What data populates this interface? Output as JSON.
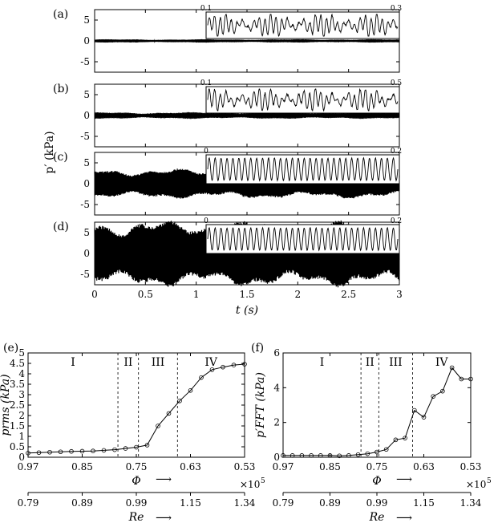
{
  "chart_data": [
    {
      "id": "a",
      "type": "line",
      "panel_label": "(a)",
      "title": "",
      "xlabel": "",
      "ylabel": "",
      "xlim": [
        0,
        3
      ],
      "ylim": [
        -7.5,
        7.5
      ],
      "yticks": [
        5,
        0,
        -5
      ],
      "signal_amplitude_kpa": 0.3,
      "inset": {
        "t_start": 0.1,
        "t_end": 0.3,
        "labels": [
          "0.1",
          "0.3"
        ]
      }
    },
    {
      "id": "b",
      "type": "line",
      "panel_label": "(b)",
      "title": "",
      "xlabel": "",
      "ylabel": "",
      "xlim": [
        0,
        3
      ],
      "ylim": [
        -7.5,
        7.5
      ],
      "yticks": [
        5,
        0,
        -5
      ],
      "signal_amplitude_kpa": 0.6,
      "inset": {
        "t_start": 0.1,
        "t_end": 0.5,
        "labels": [
          "0.1",
          "0.5"
        ]
      }
    },
    {
      "id": "c",
      "type": "line",
      "panel_label": "(c)",
      "title": "",
      "xlabel": "",
      "ylabel": "",
      "xlim": [
        0,
        3
      ],
      "ylim": [
        -7.5,
        7.5
      ],
      "yticks": [
        5,
        0,
        -5
      ],
      "signal_amplitude_kpa": 2.7,
      "inset": {
        "t_start": 0,
        "t_end": 0.2,
        "labels": [
          "0",
          "0.2"
        ]
      }
    },
    {
      "id": "d",
      "type": "line",
      "panel_label": "(d)",
      "title": "",
      "xlabel": "t (s)",
      "ylabel": "",
      "xlim": [
        0,
        3
      ],
      "ylim": [
        -7.5,
        7.5
      ],
      "xticks": [
        0,
        0.5,
        1,
        1.5,
        2,
        2.5,
        3
      ],
      "xtick_labels": [
        "0",
        "0.5",
        "1",
        "1.5",
        "2",
        "2.5",
        "3"
      ],
      "yticks": [
        5,
        0,
        -5
      ],
      "signal_amplitude_kpa": 6.0,
      "inset": {
        "t_start": 0,
        "t_end": 0.2,
        "labels": [
          "0",
          "0.2"
        ]
      }
    },
    {
      "id": "e",
      "type": "line",
      "panel_label": "(e)",
      "title": "",
      "xlabel": "Φ",
      "ylabel": "prms (kPa)",
      "ylim": [
        0,
        5
      ],
      "yticks": [
        0,
        0.5,
        1,
        1.5,
        2,
        2.5,
        3,
        3.5,
        4,
        4.5,
        5
      ],
      "xtick_labels": [
        "0.97",
        "0.85",
        "0.75",
        "0.63",
        "0.53"
      ],
      "regimes": [
        "I",
        "II",
        "III",
        "IV"
      ],
      "boundaries_index": [
        8.3,
        10.2,
        13.8
      ],
      "secondary_axis": {
        "label": "Re",
        "multiplier": "×10",
        "exponent": "5",
        "tick_labels": [
          "0.79",
          "0.89",
          "0.99",
          "1.15",
          "1.34"
        ]
      },
      "y": [
        0.2,
        0.22,
        0.24,
        0.26,
        0.28,
        0.29,
        0.3,
        0.33,
        0.36,
        0.42,
        0.48,
        0.58,
        1.5,
        2.1,
        2.7,
        3.2,
        3.82,
        4.2,
        4.32,
        4.42,
        4.46
      ]
    },
    {
      "id": "f",
      "type": "line",
      "panel_label": "(f)",
      "title": "",
      "xlabel": "Φ",
      "ylabel": "p′FFT (kPa)",
      "ylim": [
        0,
        6
      ],
      "yticks": [
        0,
        2,
        4,
        6
      ],
      "xtick_labels": [
        "0.97",
        "0.85",
        "0.75",
        "0.63",
        "0.53"
      ],
      "regimes": [
        "I",
        "II",
        "III",
        "IV"
      ],
      "boundaries_index": [
        8.3,
        10.2,
        13.8
      ],
      "secondary_axis": {
        "label": "Re",
        "multiplier": "×10",
        "exponent": "5",
        "tick_labels": [
          "0.79",
          "0.89",
          "0.99",
          "1.15",
          "1.34"
        ]
      },
      "y": [
        0.1,
        0.1,
        0.1,
        0.1,
        0.1,
        0.1,
        0.08,
        0.1,
        0.15,
        0.2,
        0.3,
        0.45,
        1.0,
        1.1,
        2.7,
        2.3,
        3.5,
        3.8,
        5.15,
        4.5,
        4.5
      ]
    }
  ],
  "shared": {
    "ylabel_main": "p′ (kPa)",
    "arrow": "⟶"
  }
}
